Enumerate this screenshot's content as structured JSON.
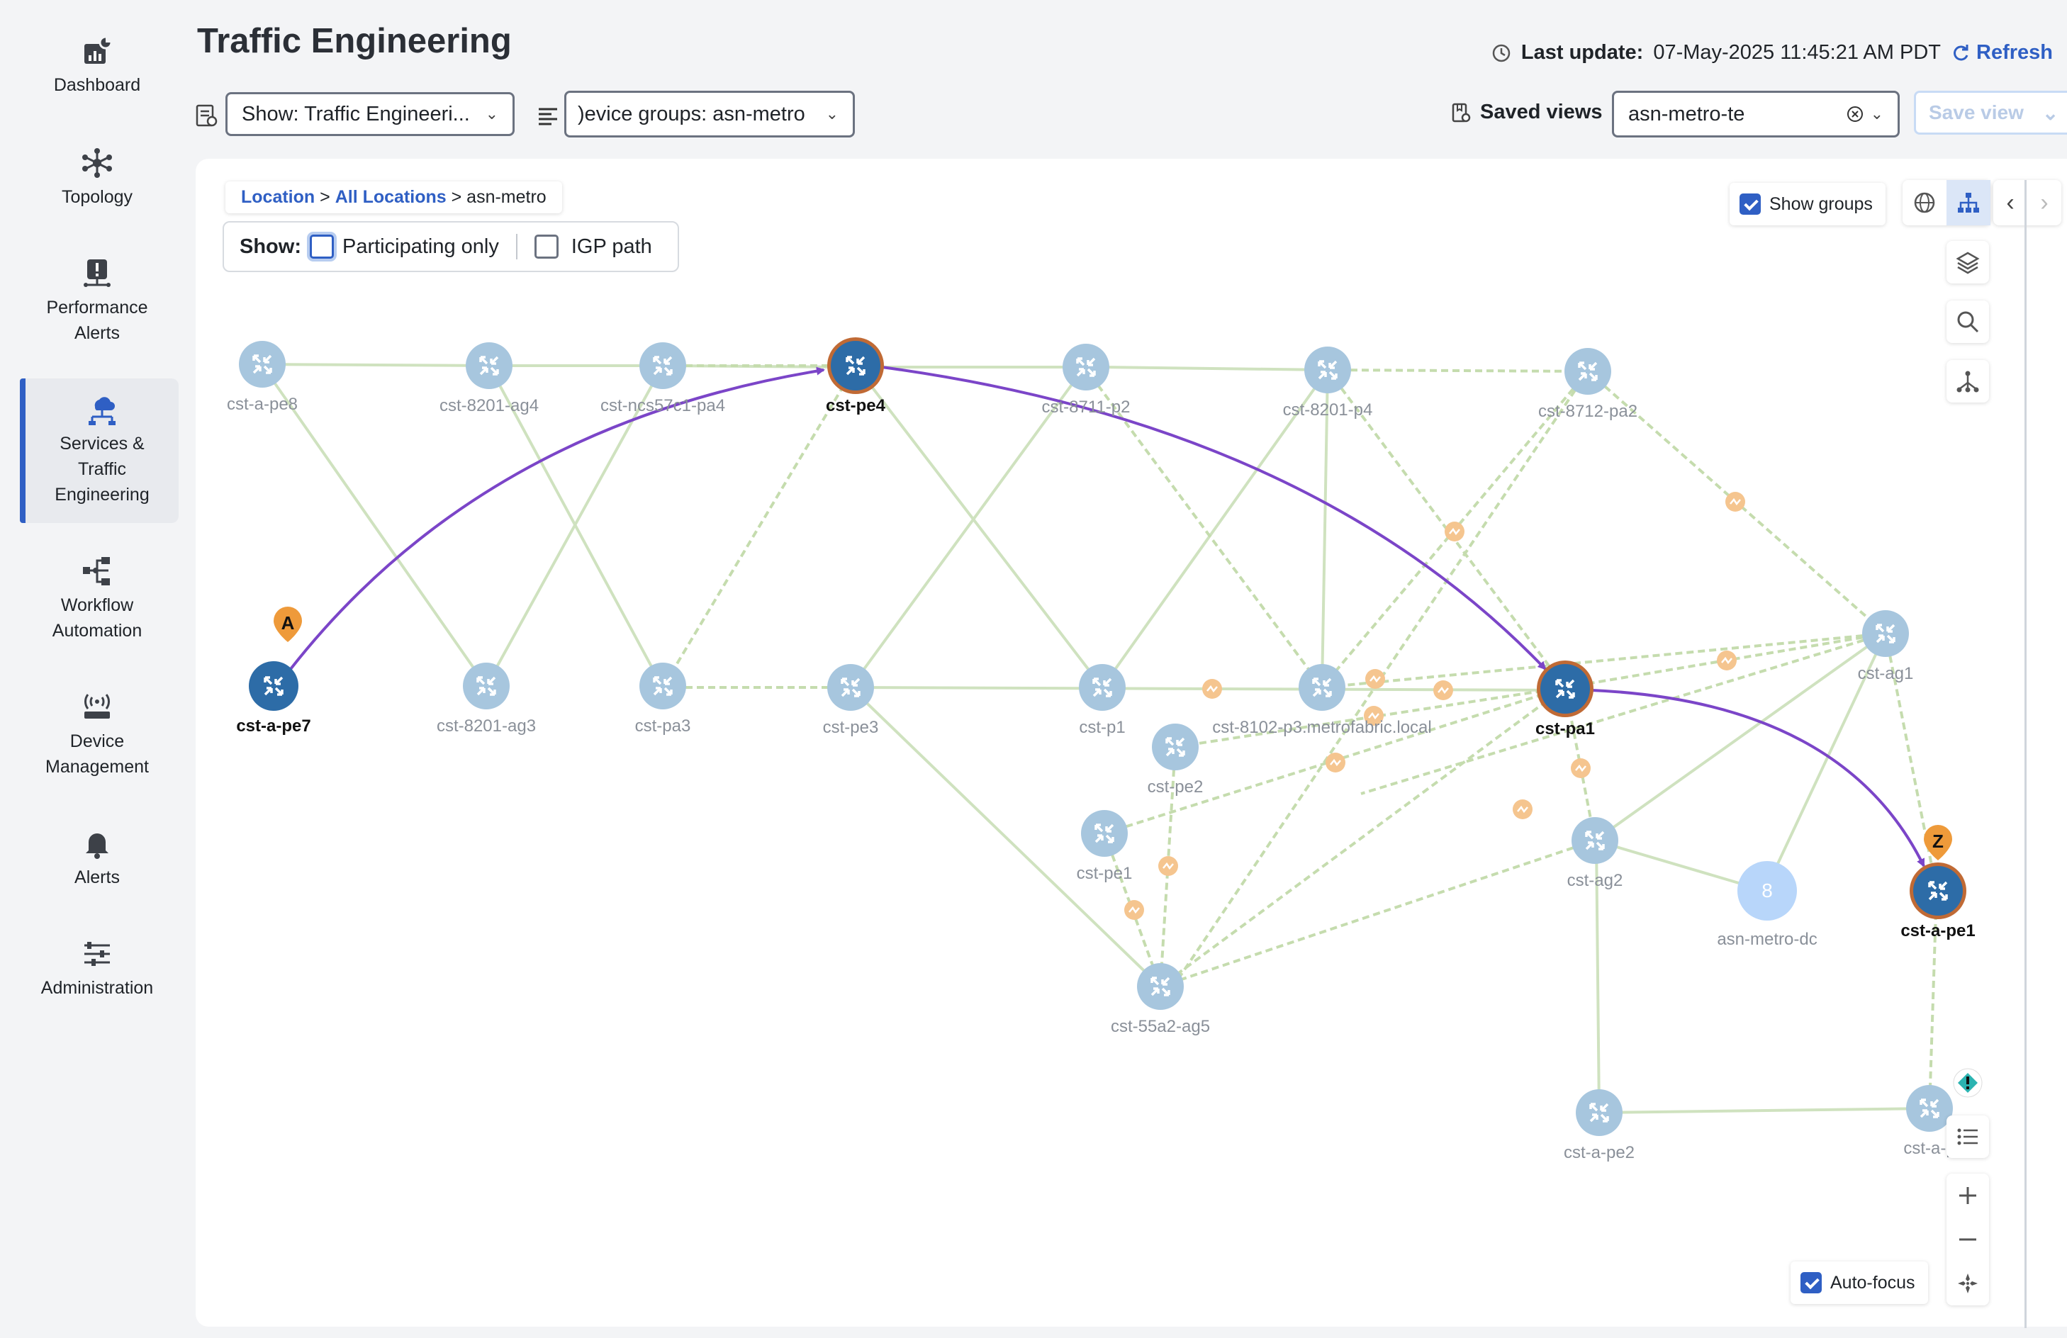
{
  "sidebar": {
    "items": [
      {
        "label": "Dashboard",
        "icon": "dashboard-icon"
      },
      {
        "label": "Topology",
        "icon": "topology-icon"
      },
      {
        "label": "Performance Alerts",
        "icon": "performance-alerts-icon"
      },
      {
        "label": "Services & Traffic Engineering",
        "icon": "services-icon",
        "active": true
      },
      {
        "label": "Workflow Automation",
        "icon": "workflow-icon"
      },
      {
        "label": "Device Management",
        "icon": "device-icon"
      },
      {
        "label": "Alerts",
        "icon": "bell-icon"
      },
      {
        "label": "Administration",
        "icon": "sliders-icon"
      }
    ]
  },
  "header": {
    "title": "Traffic Engineering",
    "last_update_label": "Last update:",
    "last_update_value": "07-May-2025 11:45:21 AM PDT",
    "refresh_label": "Refresh",
    "show_select": "Show: Traffic Engineeri...",
    "device_groups_select": ")evice groups: asn-metro",
    "saved_views_label": "Saved views",
    "saved_views_value": "asn-metro-te",
    "save_view_label": "Save view"
  },
  "canvas": {
    "breadcrumb": {
      "location": "Location",
      "all_locations": "All Locations",
      "current": "asn-metro",
      "sep": ">"
    },
    "show_label": "Show:",
    "participating_only": "Participating only",
    "igp_path": "IGP path",
    "show_groups": "Show groups",
    "show_groups_checked": true,
    "auto_focus": "Auto-focus",
    "auto_focus_checked": true
  },
  "topology": {
    "nodes": [
      {
        "id": "cst-a-pe8",
        "label": "cst-a-pe8",
        "state": "normal"
      },
      {
        "id": "cst-8201-ag4",
        "label": "cst-8201-ag4",
        "state": "normal"
      },
      {
        "id": "cst-ncs57c1-pa4",
        "label": "cst-ncs57c1-pa4",
        "state": "normal"
      },
      {
        "id": "cst-pe4",
        "label": "cst-pe4",
        "state": "path"
      },
      {
        "id": "cst-8711-p2",
        "label": "cst-8711-p2",
        "state": "normal"
      },
      {
        "id": "cst-8201-p4",
        "label": "cst-8201-p4",
        "state": "normal"
      },
      {
        "id": "cst-8712-pa2",
        "label": "cst-8712-pa2",
        "state": "normal"
      },
      {
        "id": "cst-a-pe7",
        "label": "cst-a-pe7",
        "state": "endpoint",
        "marker": "A"
      },
      {
        "id": "cst-8201-ag3",
        "label": "cst-8201-ag3",
        "state": "normal"
      },
      {
        "id": "cst-pa3",
        "label": "cst-pa3",
        "state": "normal"
      },
      {
        "id": "cst-pe3",
        "label": "cst-pe3",
        "state": "normal"
      },
      {
        "id": "cst-p1",
        "label": "cst-p1",
        "state": "normal"
      },
      {
        "id": "cst-8102-p3",
        "label": "cst-8102-p3.metrofabric.local",
        "state": "normal"
      },
      {
        "id": "cst-pa1",
        "label": "cst-pa1",
        "state": "path"
      },
      {
        "id": "cst-ag1",
        "label": "cst-ag1",
        "state": "normal"
      },
      {
        "id": "cst-pe2",
        "label": "cst-pe2",
        "state": "normal"
      },
      {
        "id": "cst-pe1",
        "label": "cst-pe1",
        "state": "normal"
      },
      {
        "id": "cst-ag2",
        "label": "cst-ag2",
        "state": "normal"
      },
      {
        "id": "asn-metro-dc",
        "label": "asn-metro-dc",
        "state": "group",
        "count": "8"
      },
      {
        "id": "cst-a-pe1",
        "label": "cst-a-pe1",
        "state": "endpoint",
        "marker": "Z"
      },
      {
        "id": "cst-55a2-ag5",
        "label": "cst-55a2-ag5",
        "state": "normal"
      },
      {
        "id": "cst-a-pe2",
        "label": "cst-a-pe2",
        "state": "normal"
      },
      {
        "id": "cst-a-p",
        "label": "cst-a-p",
        "state": "normal"
      }
    ],
    "path": [
      "cst-a-pe7",
      "cst-pe4",
      "cst-pa1",
      "cst-a-pe1"
    ]
  },
  "colors": {
    "accent": "#2f5fc4",
    "path": "#7b45c8",
    "node": "#a7c6de",
    "node_selected": "#2d6ca7",
    "node_ring": "#c06a35",
    "marker": "#ee9a3a",
    "link": "#cfe2bf",
    "link_dashed": "#c5dcae",
    "link_badge": "#f5c58f",
    "group": "#b8d6fa"
  }
}
